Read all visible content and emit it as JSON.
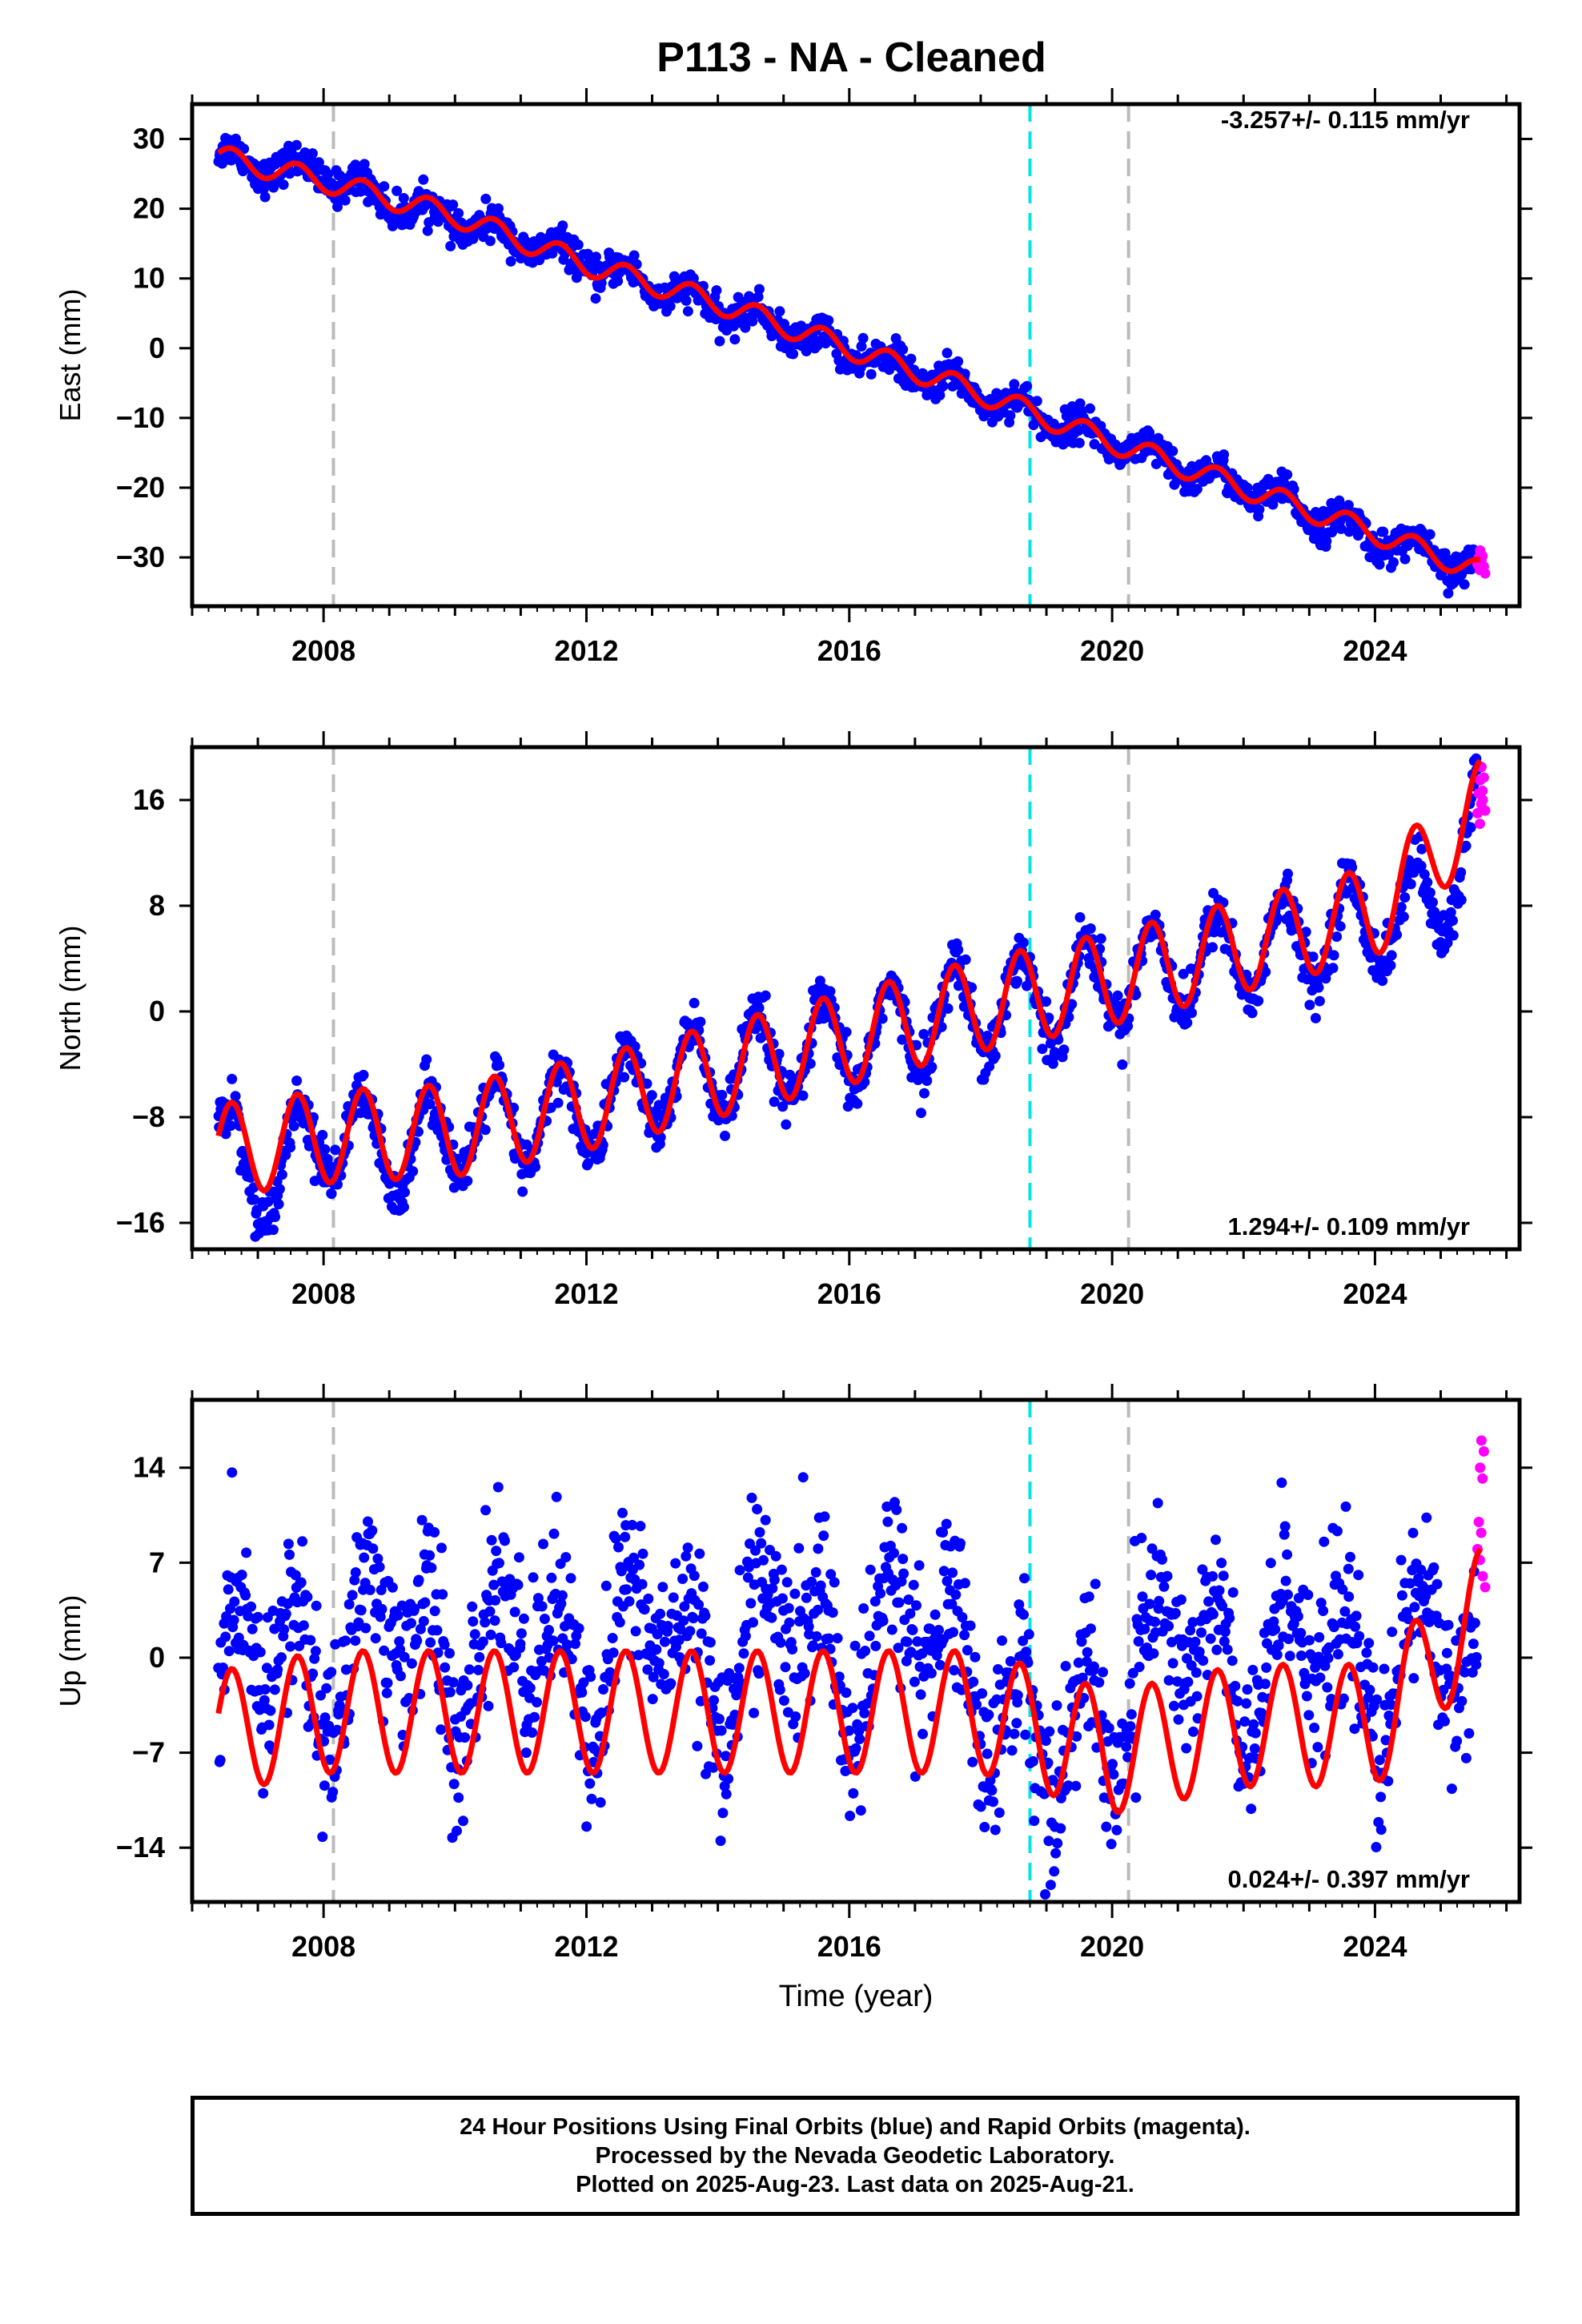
{
  "page": {
    "title": "P113  - NA - Cleaned",
    "xlabel": "Time (year)",
    "footer": [
      "24 Hour Positions Using Final Orbits (blue) and Rapid Orbits (magenta).",
      "Processed by the Nevada Geodetic Laboratory.",
      "Plotted on 2025-Aug-23. Last data on 2025-Aug-21."
    ]
  },
  "chart_data": [
    {
      "type": "scatter",
      "panel": "east",
      "ylabel": "East (mm)",
      "rate_label": "-3.257+/- 0.115 mm/yr",
      "rate_position": "top-right",
      "xlim": [
        2006.0,
        2026.2
      ],
      "ylim": [
        -37,
        35
      ],
      "yticks": [
        30,
        20,
        10,
        0,
        -10,
        -20,
        -30
      ],
      "xticks": [
        2008,
        2012,
        2016,
        2020,
        2024
      ],
      "grid": false,
      "vlines": [
        {
          "x": 2008.15,
          "color": "#bbbbbb"
        },
        {
          "x": 2018.75,
          "color": "#00e5e5"
        },
        {
          "x": 2020.25,
          "color": "#bbbbbb"
        }
      ],
      "colors": {
        "final": "#0000ff",
        "rapid": "#ff00ff",
        "model": "#ff0000"
      },
      "series": [
        {
          "name": "Final Orbits",
          "x": [
            2006.4,
            2007.2,
            2008.0,
            2009.0,
            2010.0,
            2011.0,
            2012.0,
            2013.0,
            2014.0,
            2015.0,
            2016.0,
            2017.0,
            2018.0,
            2019.0,
            2020.0,
            2021.0,
            2022.0,
            2023.0,
            2024.0,
            2025.0,
            2025.55
          ],
          "y": [
            27.5,
            26.0,
            25.0,
            21.0,
            18.3,
            15.5,
            12.2,
            9.0,
            5.7,
            3.0,
            -0.5,
            -3.5,
            -6.5,
            -10.0,
            -13.5,
            -17.0,
            -20.0,
            -23.5,
            -27.0,
            -30.0,
            -32.0
          ]
        },
        {
          "name": "Rapid Orbits",
          "x": [
            2025.56,
            2025.58,
            2025.6,
            2025.62,
            2025.64
          ],
          "y": [
            -31.0,
            -30.0,
            -29.0,
            -30.5,
            -31.5
          ]
        },
        {
          "name": "Model",
          "x": [
            2006.4,
            2008.0,
            2010.0,
            2012.0,
            2014.0,
            2016.0,
            2018.0,
            2020.0,
            2022.0,
            2024.0,
            2025.6
          ],
          "y": [
            27.5,
            24.0,
            19.0,
            12.0,
            6.5,
            0.0,
            -6.5,
            -13.5,
            -20.0,
            -26.5,
            -32.0
          ]
        }
      ]
    },
    {
      "type": "scatter",
      "panel": "north",
      "ylabel": "North (mm)",
      "rate_label": "1.294+/- 0.109 mm/yr",
      "rate_position": "bottom-right",
      "xlim": [
        2006.0,
        2026.2
      ],
      "ylim": [
        -18,
        20
      ],
      "yticks": [
        16,
        8,
        0,
        -8,
        -16
      ],
      "xticks": [
        2008,
        2012,
        2016,
        2020,
        2024
      ],
      "grid": false,
      "vlines": [
        {
          "x": 2008.15,
          "color": "#bbbbbb"
        },
        {
          "x": 2018.75,
          "color": "#00e5e5"
        },
        {
          "x": 2020.25,
          "color": "#bbbbbb"
        }
      ],
      "colors": {
        "final": "#0000ff",
        "rapid": "#ff00ff",
        "model": "#ff0000"
      },
      "series": [
        {
          "name": "Final Orbits",
          "x": [
            2006.4,
            2007.0,
            2008.0,
            2009.0,
            2010.0,
            2011.0,
            2012.0,
            2013.0,
            2014.0,
            2015.0,
            2016.0,
            2017.0,
            2018.0,
            2019.0,
            2020.0,
            2021.0,
            2022.0,
            2023.0,
            2024.0,
            2025.0,
            2025.55
          ],
          "y": [
            -9.5,
            -13.0,
            -9.0,
            -10.5,
            -9.0,
            -8.5,
            -7.5,
            -5.5,
            -4.5,
            -3.5,
            -2.5,
            -1.0,
            0.5,
            1.0,
            2.5,
            3.5,
            4.5,
            5.5,
            7.0,
            8.0,
            15.0
          ]
        },
        {
          "name": "Rapid Orbits",
          "x": [
            2025.56,
            2025.58,
            2025.6,
            2025.62,
            2025.64
          ],
          "y": [
            15.0,
            16.5,
            17.5,
            18.5,
            16.0
          ]
        },
        {
          "name": "Model",
          "x": [
            2006.4,
            2008.0,
            2010.0,
            2012.0,
            2014.0,
            2016.0,
            2018.0,
            2020.0,
            2022.0,
            2024.0,
            2025.6
          ],
          "y": [
            -10.5,
            -9.5,
            -9.0,
            -7.0,
            -4.5,
            -2.0,
            0.5,
            2.5,
            5.0,
            7.5,
            15.5
          ]
        }
      ]
    },
    {
      "type": "scatter",
      "panel": "up",
      "ylabel": "Up (mm)",
      "rate_label": "0.024+/- 0.397 mm/yr",
      "rate_position": "bottom-right",
      "xlim": [
        2006.0,
        2026.2
      ],
      "ylim": [
        -18,
        19
      ],
      "yticks": [
        14,
        7,
        0,
        -7,
        -14
      ],
      "xticks": [
        2008,
        2012,
        2016,
        2020,
        2024
      ],
      "grid": false,
      "vlines": [
        {
          "x": 2008.15,
          "color": "#bbbbbb"
        },
        {
          "x": 2018.75,
          "color": "#00e5e5"
        },
        {
          "x": 2020.25,
          "color": "#bbbbbb"
        }
      ],
      "colors": {
        "final": "#0000ff",
        "rapid": "#ff00ff",
        "model": "#ff0000"
      },
      "series": [
        {
          "name": "Final Orbits",
          "x": [
            2006.4,
            2007.0,
            2008.0,
            2009.0,
            2010.0,
            2011.0,
            2012.0,
            2013.0,
            2014.0,
            2015.0,
            2016.0,
            2017.0,
            2018.0,
            2019.0,
            2020.0,
            2021.0,
            2022.0,
            2023.0,
            2024.0,
            2025.0,
            2025.55
          ],
          "y": [
            -5.0,
            3.0,
            -3.0,
            5.0,
            -3.0,
            4.0,
            -3.0,
            5.0,
            -3.0,
            5.0,
            -3.0,
            5.0,
            -3.0,
            -6.0,
            -5.0,
            4.0,
            -4.0,
            4.0,
            -4.0,
            4.0,
            -3.0
          ]
        },
        {
          "name": "Rapid Orbits",
          "x": [
            2025.56,
            2025.58,
            2025.6,
            2025.62,
            2025.64
          ],
          "y": [
            8.0,
            10.0,
            14.0,
            16.0,
            6.0
          ]
        },
        {
          "name": "Model",
          "x": [
            2006.4,
            2008.0,
            2010.0,
            2012.0,
            2014.0,
            2016.0,
            2018.0,
            2020.0,
            2022.0,
            2024.0,
            2025.6
          ],
          "y": [
            -5.5,
            -4.0,
            -4.0,
            -4.0,
            -4.0,
            -4.0,
            -4.0,
            -7.0,
            -5.0,
            -5.0,
            3.5
          ]
        }
      ]
    }
  ]
}
